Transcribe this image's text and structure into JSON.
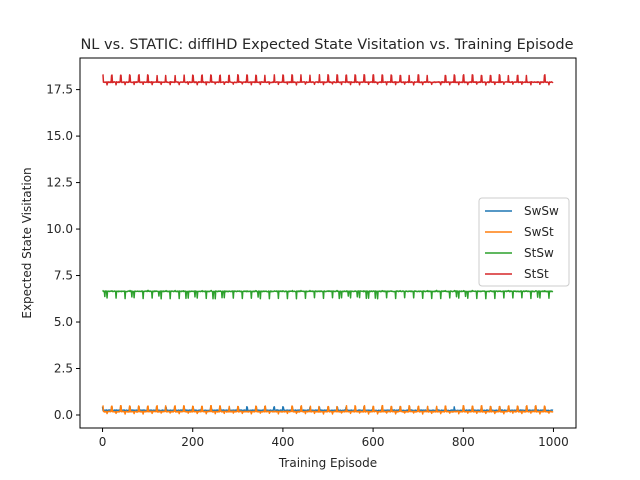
{
  "chart_data": {
    "type": "line",
    "title": "NL vs. STATIC: diffIHD Expected State Visitation vs. Training Episode",
    "xlabel": "Training Episode",
    "ylabel": "Expected State Visitation",
    "xlim": [
      -50,
      1050
    ],
    "ylim": [
      -0.7,
      19.2
    ],
    "xticks": [
      0,
      200,
      400,
      600,
      800,
      1000
    ],
    "yticks": [
      0.0,
      2.5,
      5.0,
      7.5,
      10.0,
      12.5,
      15.0,
      17.5
    ],
    "ytick_labels": [
      "0.0",
      "2.5",
      "5.0",
      "7.5",
      "10.0",
      "12.5",
      "15.0",
      "17.5"
    ],
    "grid": false,
    "legend_position": "center-right",
    "n_points": 1000,
    "series": [
      {
        "name": "SwSw",
        "color": "#1f77b4",
        "base": 0.25,
        "spike": 0.45,
        "dip": 0.15,
        "spike_dir": "up"
      },
      {
        "name": "SwSt",
        "color": "#ff7f0e",
        "base": 0.18,
        "spike": 0.5,
        "dip": 0.05,
        "spike_dir": "up"
      },
      {
        "name": "StSw",
        "color": "#2ca02c",
        "base": 6.65,
        "spike": 6.7,
        "dip": 6.25,
        "spike_dir": "down"
      },
      {
        "name": "StSt",
        "color": "#d62728",
        "base": 17.9,
        "spike": 18.3,
        "dip": 17.75,
        "spike_dir": "up"
      }
    ]
  }
}
